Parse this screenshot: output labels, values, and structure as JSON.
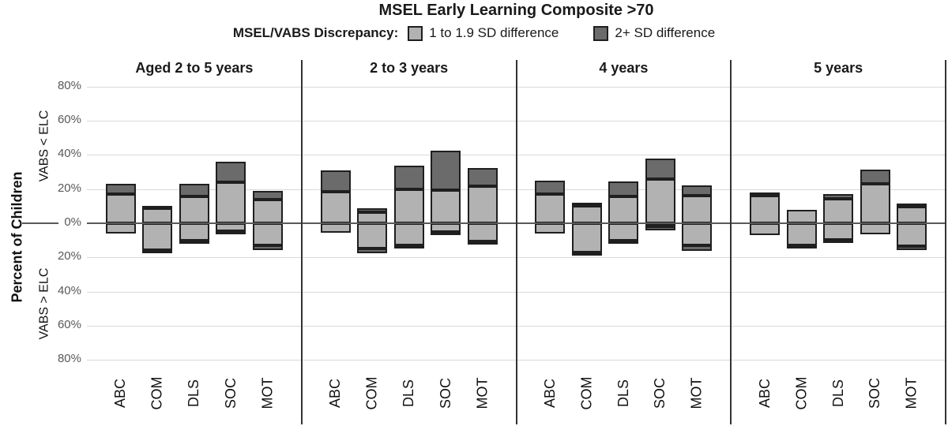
{
  "title": "MSEL Early Learning Composite >70",
  "legend": {
    "label": "MSEL/VABS Discrepancy:",
    "items": [
      {
        "label": "1 to 1.9 SD difference",
        "color": "#b2b2b2"
      },
      {
        "label": "2+ SD difference",
        "color": "#6b6b6b"
      }
    ]
  },
  "y_axis": {
    "label": "Percent of Children",
    "upper_label": "VABS < ELC",
    "lower_label": "VABS > ELC",
    "ticks": [
      {
        "value": 80,
        "label": "80%"
      },
      {
        "value": 60,
        "label": "60%"
      },
      {
        "value": 40,
        "label": "40%"
      },
      {
        "value": 20,
        "label": "20%"
      },
      {
        "value": 0,
        "label": "0%"
      },
      {
        "value": -20,
        "label": "20%"
      },
      {
        "value": -40,
        "label": "40%"
      },
      {
        "value": -60,
        "label": "60%"
      },
      {
        "value": -80,
        "label": "80%"
      }
    ]
  },
  "chart_data": {
    "type": "bar",
    "subtype": "diverging-stacked",
    "units": "percent of children",
    "ylim": [
      -80,
      80
    ],
    "grid": true,
    "colors": {
      "sd1": "#b2b2b2",
      "sd2": "#6b6b6b"
    },
    "series_meta": {
      "above_axis_meaning": "VABS < ELC",
      "below_axis_meaning": "VABS > ELC",
      "sd1_label": "1 to 1.9 SD difference",
      "sd2_label": "2+ SD difference"
    },
    "categories": [
      "ABC",
      "COM",
      "DLS",
      "SOC",
      "MOT"
    ],
    "panels": [
      {
        "label": "Aged 2 to 5 years",
        "bars": [
          {
            "category": "ABC",
            "above_sd1": 17,
            "above_sd2": 6,
            "below_sd1": 6,
            "below_sd2": 0
          },
          {
            "category": "COM",
            "above_sd1": 9,
            "above_sd2": 1,
            "below_sd1": 15.5,
            "below_sd2": 2
          },
          {
            "category": "DLS",
            "above_sd1": 15.5,
            "above_sd2": 7.5,
            "below_sd1": 10,
            "below_sd2": 1
          },
          {
            "category": "SOC",
            "above_sd1": 24,
            "above_sd2": 12,
            "below_sd1": 4.5,
            "below_sd2": 1
          },
          {
            "category": "MOT",
            "above_sd1": 14,
            "above_sd2": 5,
            "below_sd1": 13,
            "below_sd2": 2.5
          }
        ]
      },
      {
        "label": "2 to 3 years",
        "bars": [
          {
            "category": "ABC",
            "above_sd1": 18.5,
            "above_sd2": 12.5,
            "below_sd1": 5.5,
            "below_sd2": 0
          },
          {
            "category": "COM",
            "above_sd1": 6.5,
            "above_sd2": 2.5,
            "below_sd1": 15,
            "below_sd2": 2.5
          },
          {
            "category": "DLS",
            "above_sd1": 20,
            "above_sd2": 13.5,
            "below_sd1": 13,
            "below_sd2": 2
          },
          {
            "category": "SOC",
            "above_sd1": 19.5,
            "above_sd2": 23,
            "below_sd1": 5,
            "below_sd2": 2
          },
          {
            "category": "MOT",
            "above_sd1": 21.5,
            "above_sd2": 11,
            "below_sd1": 10.5,
            "below_sd2": 2
          }
        ]
      },
      {
        "label": "4 years",
        "bars": [
          {
            "category": "ABC",
            "above_sd1": 17,
            "above_sd2": 8,
            "below_sd1": 6,
            "below_sd2": 0
          },
          {
            "category": "COM",
            "above_sd1": 10,
            "above_sd2": 2,
            "below_sd1": 17,
            "below_sd2": 2
          },
          {
            "category": "DLS",
            "above_sd1": 15.5,
            "above_sd2": 9,
            "below_sd1": 10,
            "below_sd2": 1
          },
          {
            "category": "SOC",
            "above_sd1": 26,
            "above_sd2": 12,
            "below_sd1": 2,
            "below_sd2": 2
          },
          {
            "category": "MOT",
            "above_sd1": 16,
            "above_sd2": 6,
            "below_sd1": 13,
            "below_sd2": 3
          }
        ]
      },
      {
        "label": "5 years",
        "bars": [
          {
            "category": "ABC",
            "above_sd1": 16,
            "above_sd2": 2,
            "below_sd1": 7,
            "below_sd2": 0
          },
          {
            "category": "COM",
            "above_sd1": 8,
            "above_sd2": 0,
            "below_sd1": 13,
            "below_sd2": 2
          },
          {
            "category": "DLS",
            "above_sd1": 14.5,
            "above_sd2": 2.5,
            "below_sd1": 9.5,
            "below_sd2": 1
          },
          {
            "category": "SOC",
            "above_sd1": 23,
            "above_sd2": 8.5,
            "below_sd1": 6.5,
            "below_sd2": 0
          },
          {
            "category": "MOT",
            "above_sd1": 9.5,
            "above_sd2": 2,
            "below_sd1": 13.5,
            "below_sd2": 2
          }
        ]
      }
    ]
  }
}
